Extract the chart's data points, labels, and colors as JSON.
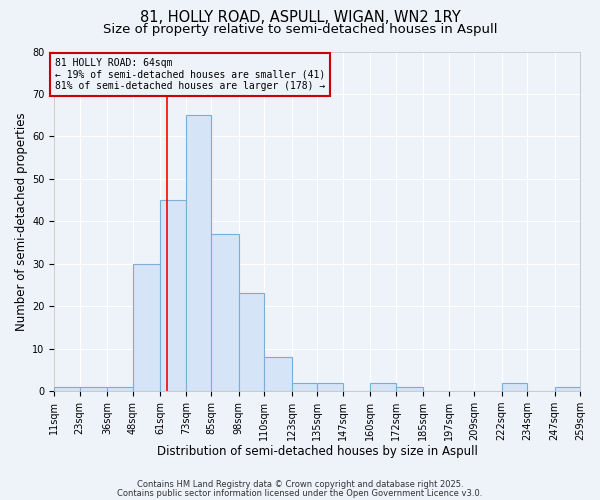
{
  "title": "81, HOLLY ROAD, ASPULL, WIGAN, WN2 1RY",
  "subtitle": "Size of property relative to semi-detached houses in Aspull",
  "xlabel": "Distribution of semi-detached houses by size in Aspull",
  "ylabel": "Number of semi-detached properties",
  "bin_edges": [
    11,
    23,
    36,
    48,
    61,
    73,
    85,
    98,
    110,
    123,
    135,
    147,
    160,
    172,
    185,
    197,
    209,
    222,
    234,
    247,
    259
  ],
  "bar_heights": [
    1,
    1,
    1,
    30,
    45,
    65,
    37,
    23,
    8,
    2,
    2,
    0,
    2,
    1,
    0,
    0,
    0,
    2,
    0,
    1
  ],
  "bar_color": "#d6e4f7",
  "bar_edge_color": "#7aaed6",
  "property_line_x": 64,
  "property_line_color": "red",
  "annotation_title": "81 HOLLY ROAD: 64sqm",
  "annotation_line1": "← 19% of semi-detached houses are smaller (41)",
  "annotation_line2": "81% of semi-detached houses are larger (178) →",
  "annotation_box_edgecolor": "#cc0000",
  "ylim": [
    0,
    80
  ],
  "yticks": [
    0,
    10,
    20,
    30,
    40,
    50,
    60,
    70,
    80
  ],
  "tick_labels": [
    "11sqm",
    "23sqm",
    "36sqm",
    "48sqm",
    "61sqm",
    "73sqm",
    "85sqm",
    "98sqm",
    "110sqm",
    "123sqm",
    "135sqm",
    "147sqm",
    "160sqm",
    "172sqm",
    "185sqm",
    "197sqm",
    "209sqm",
    "222sqm",
    "234sqm",
    "247sqm",
    "259sqm"
  ],
  "footer1": "Contains HM Land Registry data © Crown copyright and database right 2025.",
  "footer2": "Contains public sector information licensed under the Open Government Licence v3.0.",
  "bg_color": "#eef2f9",
  "plot_bg_color": "#eef2f9",
  "grid_color": "#ffffff",
  "title_fontsize": 10.5,
  "subtitle_fontsize": 9.5,
  "axis_label_fontsize": 8.5,
  "tick_fontsize": 7,
  "annotation_fontsize": 7,
  "footer_fontsize": 6
}
